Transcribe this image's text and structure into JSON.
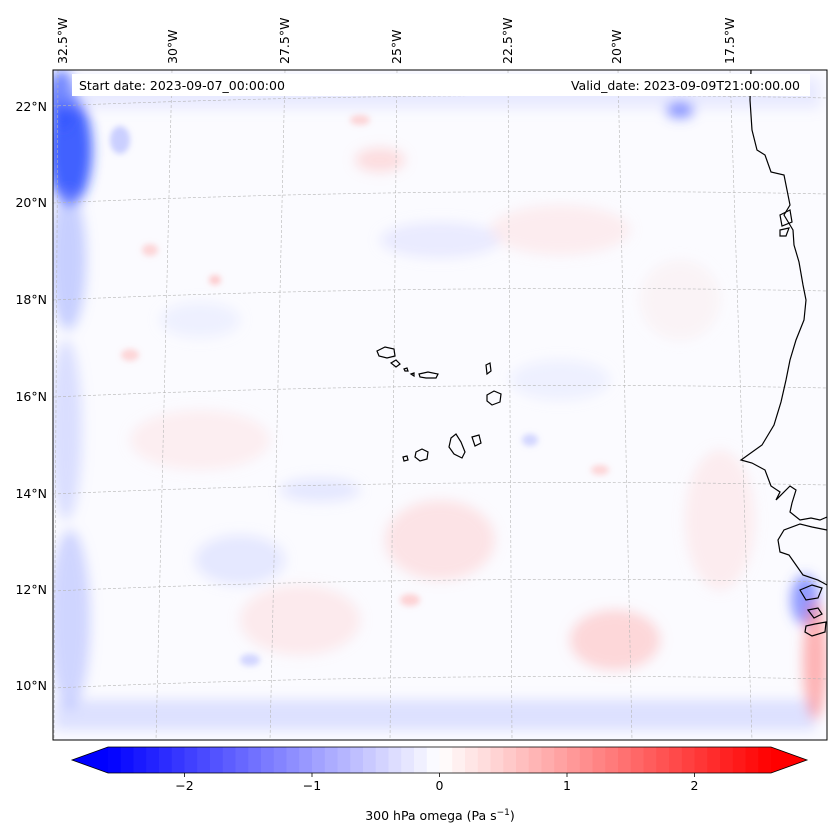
{
  "annotations": {
    "start_date": "Start date: 2023-09-07_00:00:00",
    "valid_date": "Valid_date: 2023-09-09T21:00:00.00"
  },
  "map": {
    "lon_labels": [
      "32.5°W",
      "30°W",
      "27.5°W",
      "25°W",
      "22.5°W",
      "20°W",
      "17.5°W"
    ],
    "lat_labels": [
      "22°N",
      "20°N",
      "18°N",
      "16°N",
      "14°N",
      "12°N",
      "10°N"
    ],
    "gridlines": true,
    "coastline_color": "#000000"
  },
  "colorbar": {
    "label": "300 hPa omega (Pa s",
    "label_sup": "−1",
    "label_close": ")",
    "tick_labels": [
      "−2",
      "−1",
      "0",
      "1",
      "2"
    ],
    "tick_values": [
      -2,
      -1,
      0,
      1,
      2
    ],
    "vmin": -2.6,
    "vmax": 2.6,
    "extend": "both",
    "colormap": "bwr",
    "color_min": "#0000ff",
    "color_mid": "#ffffff",
    "color_max": "#ff0000"
  }
}
